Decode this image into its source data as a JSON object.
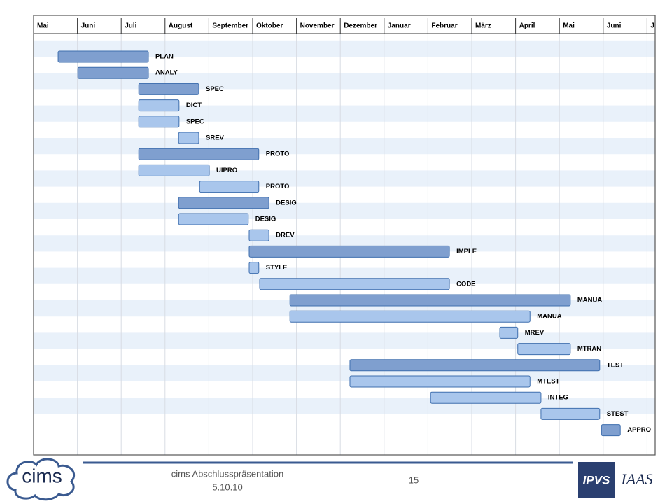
{
  "chart_data": {
    "type": "gantt",
    "categories": [
      "Mai",
      "Juni",
      "Juli",
      "August",
      "September",
      "Oktober",
      "November",
      "Dezember",
      "Januar",
      "Februar",
      "März",
      "April",
      "Mai",
      "Juni",
      "J"
    ],
    "tasks": [
      {
        "name": "PLAN",
        "start": 0.56,
        "end": 2.62,
        "color": "#7f9fcf"
      },
      {
        "name": "ANALY",
        "start": 1.01,
        "end": 2.62,
        "color": "#7f9fcf"
      },
      {
        "name": "SPEC",
        "start": 2.4,
        "end": 3.77,
        "color": "#7f9fcf"
      },
      {
        "name": "DICT",
        "start": 2.4,
        "end": 3.32,
        "color": "#a9c6ec"
      },
      {
        "name": "SPEC",
        "start": 2.4,
        "end": 3.32,
        "color": "#a9c6ec"
      },
      {
        "name": "SREV",
        "start": 3.31,
        "end": 3.77,
        "color": "#a9c6ec"
      },
      {
        "name": "PROTO",
        "start": 2.4,
        "end": 5.14,
        "color": "#7f9fcf"
      },
      {
        "name": "UIPRO",
        "start": 2.4,
        "end": 4.01,
        "color": "#a9c6ec"
      },
      {
        "name": "PROTO",
        "start": 3.79,
        "end": 5.14,
        "color": "#a9c6ec"
      },
      {
        "name": "DESIG",
        "start": 3.31,
        "end": 5.37,
        "color": "#7f9fcf"
      },
      {
        "name": "DESIG",
        "start": 3.31,
        "end": 4.9,
        "color": "#a9c6ec"
      },
      {
        "name": "DREV",
        "start": 4.92,
        "end": 5.37,
        "color": "#a9c6ec"
      },
      {
        "name": "IMPLE",
        "start": 4.92,
        "end": 9.49,
        "color": "#7f9fcf"
      },
      {
        "name": "STYLE",
        "start": 4.92,
        "end": 5.14,
        "color": "#a9c6ec"
      },
      {
        "name": "CODE",
        "start": 5.16,
        "end": 9.49,
        "color": "#a9c6ec"
      },
      {
        "name": "MANUA",
        "start": 5.85,
        "end": 12.25,
        "color": "#7f9fcf"
      },
      {
        "name": "MANUA",
        "start": 5.85,
        "end": 11.33,
        "color": "#a9c6ec"
      },
      {
        "name": "MREV",
        "start": 10.64,
        "end": 11.05,
        "color": "#a9c6ec"
      },
      {
        "name": "MTRAN",
        "start": 11.05,
        "end": 12.25,
        "color": "#a9c6ec"
      },
      {
        "name": "TEST",
        "start": 7.22,
        "end": 12.92,
        "color": "#7f9fcf"
      },
      {
        "name": "MTEST",
        "start": 7.22,
        "end": 11.33,
        "color": "#a9c6ec"
      },
      {
        "name": "INTEG",
        "start": 9.06,
        "end": 11.58,
        "color": "#a9c6ec"
      },
      {
        "name": "STEST",
        "start": 11.58,
        "end": 12.92,
        "color": "#a9c6ec"
      },
      {
        "name": "APPRO",
        "start": 12.96,
        "end": 13.39,
        "color": "#7f9fcf"
      }
    ]
  },
  "footer": {
    "logo_left": "cims",
    "title": "cims Abschlusspräsentation",
    "date": "5.10.10",
    "page": "15",
    "logo_right": "IPVS",
    "logo_right2": "IAAS"
  }
}
